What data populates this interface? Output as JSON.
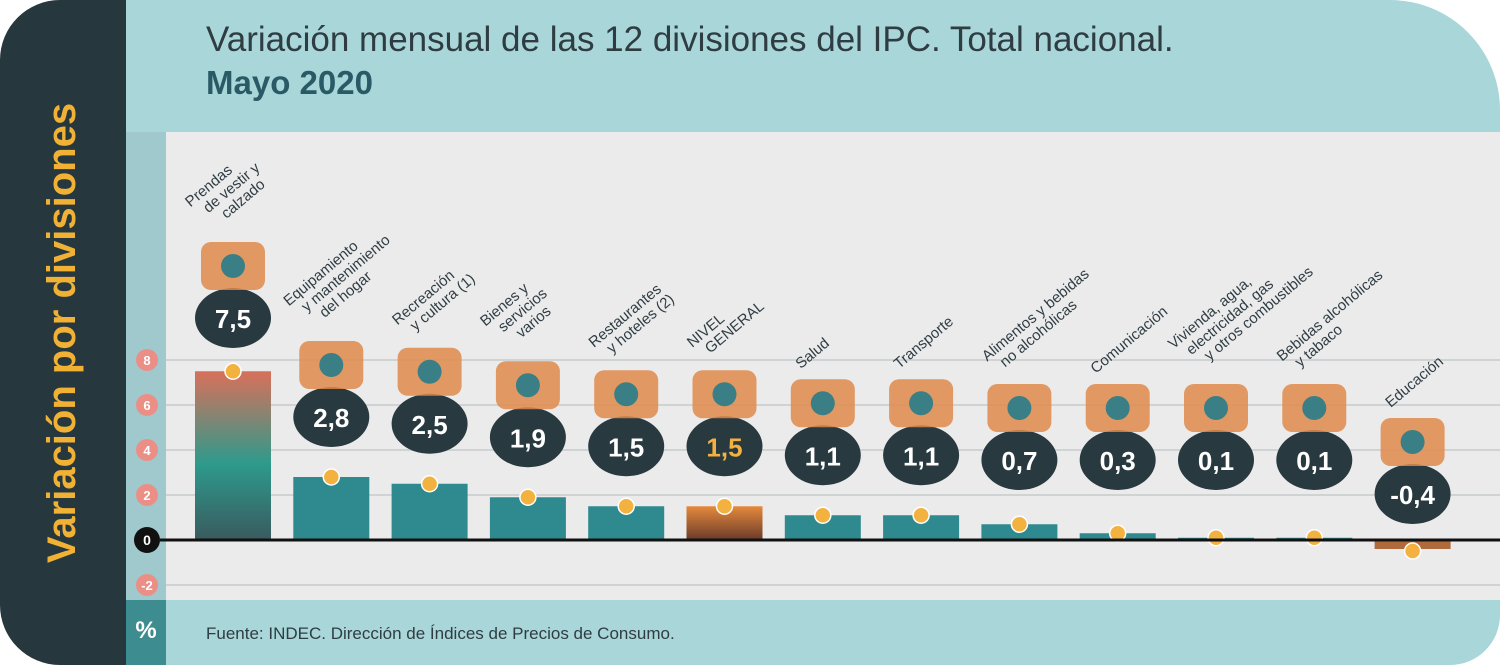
{
  "side_title": "Variación por divisiones",
  "unit_label": "%",
  "source": "Fuente: INDEC. Dirección de Índices de Precios de Consumo.",
  "colors": {
    "bar": "#2e8a8e",
    "general": "#c46a32",
    "highlight_top": "#d9705a",
    "highlight_bottom": "#2d9a8c",
    "negative": "#b06a3c",
    "bubble": "#28393f",
    "marker": "#f3b13f",
    "tick_badge": "#eb8f86"
  },
  "chart_data": {
    "type": "bar",
    "title": "Variación mensual de las 12 divisiones del IPC. Total nacional.",
    "subtitle": "Mayo 2020",
    "xlabel": "",
    "ylabel": "",
    "ylim": [
      -2,
      8
    ],
    "yticks": [
      8,
      6,
      4,
      2,
      0,
      -2
    ],
    "grid": true,
    "categories": [
      [
        "Prendas",
        "de vestir y",
        "calzado"
      ],
      [
        "Equipamiento",
        "y mantenimiento",
        "del hogar"
      ],
      [
        "Recreación",
        "y cultura (1)"
      ],
      [
        "Bienes y",
        "servicios",
        "varios"
      ],
      [
        "Restaurantes",
        "y hoteles (2)"
      ],
      [
        "NIVEL",
        "GENERAL"
      ],
      [
        "Salud"
      ],
      [
        "Transporte"
      ],
      [
        "Alimentos y bebidas",
        "no alcohólicas"
      ],
      [
        "Comunicación"
      ],
      [
        "Vivienda, agua,",
        "electricidad, gas",
        "y otros combustibles"
      ],
      [
        "Bebidas alcohólicas",
        "y tabaco"
      ],
      [
        "Educación"
      ]
    ],
    "values": [
      7.5,
      2.8,
      2.5,
      1.9,
      1.5,
      1.5,
      1.1,
      1.1,
      0.7,
      0.3,
      0.1,
      0.1,
      -0.4
    ],
    "value_labels": [
      "7,5",
      "2,8",
      "2,5",
      "1,9",
      "1,5",
      "1,5",
      "1,1",
      "1,1",
      "0,7",
      "0,3",
      "0,1",
      "0,1",
      "-0,4"
    ],
    "icons": [
      "shirt-icon",
      "washing-machine-icon",
      "recreation-icon",
      "scissors-icon",
      "restaurant-icon",
      "shopping-basket-icon",
      "first-aid-kit-icon",
      "bus-icon",
      "roast-chicken-icon",
      "mobile-phone-icon",
      "light-bulb-icon",
      "bottle-icon",
      "school-book-icon"
    ]
  }
}
